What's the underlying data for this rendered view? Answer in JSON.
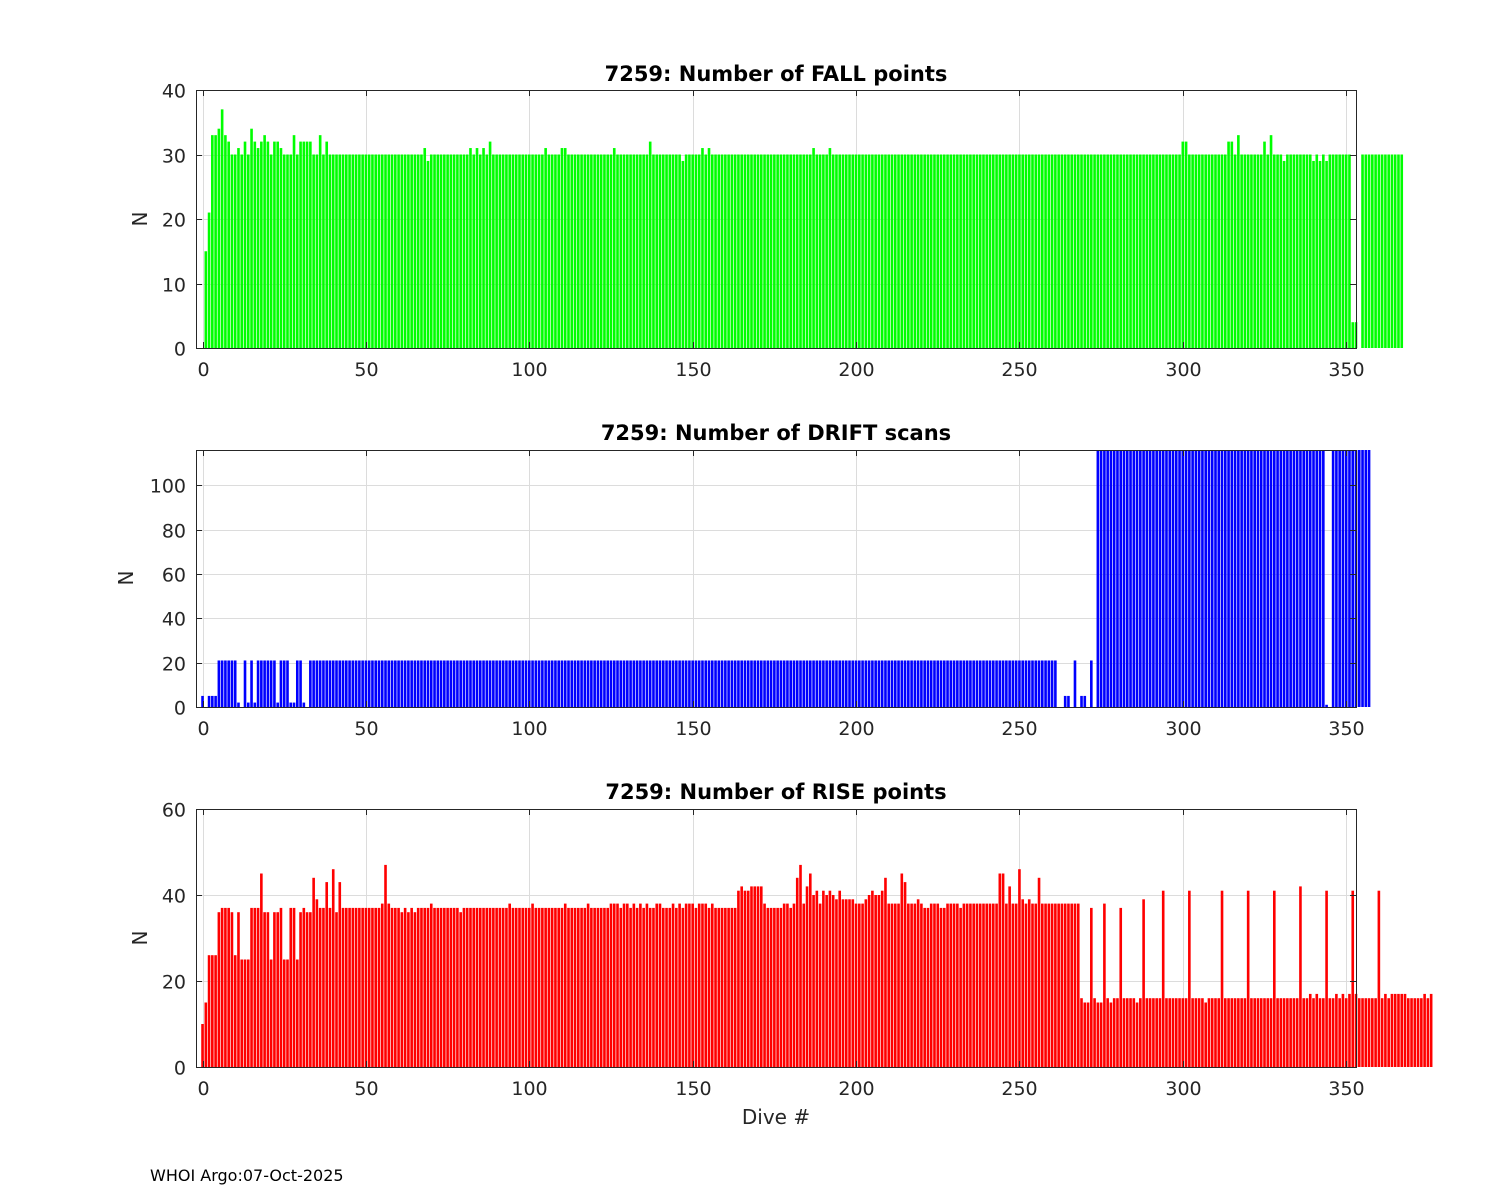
{
  "footer": "WHOI Argo:07-Oct-2025",
  "chart_data": [
    {
      "type": "bar",
      "title": "7259: Number of FALL points",
      "xlabel": "",
      "ylabel": "N",
      "xlim": [
        -2,
        353
      ],
      "ylim": [
        0,
        40
      ],
      "xticks": [
        0,
        50,
        100,
        150,
        200,
        250,
        300,
        350
      ],
      "yticks": [
        0,
        10,
        20,
        30,
        40
      ],
      "color": "#00ff00",
      "x_start": 1,
      "values": [
        15,
        21,
        33,
        33,
        34,
        37,
        33,
        32,
        30,
        30,
        31,
        30,
        32,
        30,
        34,
        32,
        31,
        32,
        33,
        32,
        30,
        32,
        32,
        31,
        30,
        30,
        30,
        33,
        30,
        32,
        32,
        32,
        32,
        30,
        30,
        33,
        30,
        32,
        30,
        30,
        30,
        30,
        30,
        30,
        30,
        30,
        30,
        30,
        30,
        30,
        30,
        30,
        30,
        30,
        30,
        30,
        30,
        30,
        30,
        30,
        30,
        30,
        30,
        30,
        30,
        30,
        30,
        31,
        29,
        30,
        30,
        30,
        30,
        30,
        30,
        30,
        30,
        30,
        30,
        30,
        30,
        31,
        30,
        31,
        30,
        31,
        30,
        32,
        30,
        30,
        30,
        30,
        30,
        30,
        30,
        30,
        30,
        30,
        30,
        30,
        30,
        30,
        30,
        30,
        31,
        30,
        30,
        30,
        30,
        31,
        31,
        30,
        30,
        30,
        30,
        30,
        30,
        30,
        30,
        30,
        30,
        30,
        30,
        30,
        30,
        31,
        30,
        30,
        30,
        30,
        30,
        30,
        30,
        30,
        30,
        30,
        32,
        30,
        30,
        30,
        30,
        30,
        30,
        30,
        30,
        30,
        29,
        30,
        30,
        30,
        30,
        30,
        31,
        30,
        31,
        30,
        30,
        30,
        30,
        30,
        30,
        30,
        30,
        30,
        30,
        30,
        30,
        30,
        30,
        30,
        30,
        30,
        30,
        30,
        30,
        30,
        30,
        30,
        30,
        30,
        30,
        30,
        30,
        30,
        30,
        30,
        31,
        30,
        30,
        30,
        30,
        31,
        30,
        30,
        30,
        30,
        30,
        30,
        30,
        30,
        30,
        30,
        30,
        30,
        30,
        30,
        30,
        30,
        30,
        30,
        30,
        30,
        30,
        30,
        30,
        30,
        30,
        30,
        30,
        30,
        30,
        30,
        30,
        30,
        30,
        30,
        30,
        30,
        30,
        30,
        30,
        30,
        30,
        30,
        30,
        30,
        30,
        30,
        30,
        30,
        30,
        30,
        30,
        30,
        30,
        30,
        30,
        30,
        30,
        30,
        30,
        30,
        30,
        30,
        30,
        30,
        30,
        30,
        30,
        30,
        30,
        30,
        30,
        30,
        30,
        30,
        30,
        30,
        30,
        30,
        30,
        30,
        30,
        30,
        30,
        30,
        30,
        30,
        30,
        30,
        30,
        30,
        30,
        30,
        30,
        30,
        30,
        30,
        30,
        30,
        30,
        30,
        30,
        30,
        30,
        30,
        30,
        30,
        30,
        32,
        32,
        30,
        30,
        30,
        30,
        30,
        30,
        30,
        30,
        30,
        30,
        30,
        30,
        32,
        32,
        30,
        33,
        30,
        30,
        30,
        30,
        30,
        30,
        30,
        32,
        30,
        33,
        30,
        30,
        30,
        29,
        30,
        30,
        30,
        30,
        30,
        30,
        30,
        30,
        29,
        30,
        29,
        30,
        29,
        30,
        30,
        30,
        30,
        30,
        30,
        30,
        4,
        4,
        0,
        30,
        30,
        30,
        30,
        30,
        30,
        30,
        30,
        30,
        30,
        30,
        30,
        30
      ]
    },
    {
      "type": "bar",
      "title": "7259: Number of DRIFT scans",
      "xlabel": "",
      "ylabel": "N",
      "xlim": [
        -2,
        353
      ],
      "ylim": [
        0,
        116
      ],
      "xticks": [
        0,
        50,
        100,
        150,
        200,
        250,
        300,
        350
      ],
      "yticks": [
        0,
        20,
        40,
        60,
        80,
        100
      ],
      "color": "#0000ff",
      "x_start": 0,
      "values": [
        5,
        0,
        5,
        5,
        5,
        21,
        21,
        21,
        21,
        21,
        21,
        2,
        0,
        21,
        2,
        21,
        2,
        21,
        21,
        21,
        21,
        21,
        21,
        2,
        21,
        21,
        21,
        2,
        2,
        21,
        21,
        2,
        0,
        21,
        21,
        21,
        21,
        21,
        21,
        21,
        21,
        21,
        21,
        21,
        21,
        21,
        21,
        21,
        21,
        21,
        21,
        21,
        21,
        21,
        21,
        21,
        21,
        21,
        21,
        21,
        21,
        21,
        21,
        21,
        21,
        21,
        21,
        21,
        21,
        21,
        21,
        21,
        21,
        21,
        21,
        21,
        21,
        21,
        21,
        21,
        21,
        21,
        21,
        21,
        21,
        21,
        21,
        21,
        21,
        21,
        21,
        21,
        21,
        21,
        21,
        21,
        21,
        21,
        21,
        21,
        21,
        21,
        21,
        21,
        21,
        21,
        21,
        21,
        21,
        21,
        21,
        21,
        21,
        21,
        21,
        21,
        21,
        21,
        21,
        21,
        21,
        21,
        21,
        21,
        21,
        21,
        21,
        21,
        21,
        21,
        21,
        21,
        21,
        21,
        21,
        21,
        21,
        21,
        21,
        21,
        21,
        21,
        21,
        21,
        21,
        21,
        21,
        21,
        21,
        21,
        21,
        21,
        21,
        21,
        21,
        21,
        21,
        21,
        21,
        21,
        21,
        21,
        21,
        21,
        21,
        21,
        21,
        21,
        21,
        21,
        21,
        21,
        21,
        21,
        21,
        21,
        21,
        21,
        21,
        21,
        21,
        21,
        21,
        21,
        21,
        21,
        21,
        21,
        21,
        21,
        21,
        21,
        21,
        21,
        21,
        21,
        21,
        21,
        21,
        21,
        21,
        21,
        21,
        21,
        21,
        21,
        21,
        21,
        21,
        21,
        21,
        21,
        21,
        21,
        21,
        21,
        21,
        21,
        21,
        21,
        21,
        21,
        21,
        21,
        21,
        21,
        21,
        21,
        21,
        21,
        21,
        21,
        21,
        21,
        21,
        21,
        21,
        21,
        21,
        21,
        21,
        21,
        21,
        21,
        21,
        21,
        21,
        21,
        21,
        21,
        21,
        21,
        21,
        21,
        21,
        21,
        21,
        21,
        21,
        21,
        21,
        21,
        0,
        0,
        5,
        5,
        0,
        21,
        0,
        5,
        5,
        0,
        21,
        0,
        117,
        117,
        117,
        117,
        117,
        117,
        117,
        117,
        117,
        117,
        117,
        117,
        117,
        117,
        117,
        117,
        117,
        117,
        117,
        117,
        117,
        117,
        117,
        117,
        117,
        117,
        117,
        117,
        117,
        117,
        117,
        117,
        117,
        117,
        117,
        117,
        117,
        117,
        117,
        117,
        117,
        117,
        117,
        117,
        117,
        117,
        117,
        117,
        117,
        117,
        117,
        117,
        117,
        117,
        117,
        117,
        117,
        117,
        117,
        117,
        117,
        117,
        117,
        117,
        117,
        117,
        117,
        117,
        117,
        117,
        1,
        0,
        117,
        117,
        117,
        117,
        117,
        117,
        117,
        117,
        117,
        117,
        117,
        117
      ]
    },
    {
      "type": "bar",
      "title": "7259: Number of RISE points",
      "xlabel": "Dive #",
      "ylabel": "N",
      "xlim": [
        -2,
        353
      ],
      "ylim": [
        0,
        60
      ],
      "xticks": [
        0,
        50,
        100,
        150,
        200,
        250,
        300,
        350
      ],
      "yticks": [
        0,
        20,
        40,
        60
      ],
      "color": "#ff0000",
      "x_start": 0,
      "values": [
        10,
        15,
        26,
        26,
        26,
        36,
        37,
        37,
        37,
        36,
        26,
        36,
        25,
        25,
        25,
        37,
        37,
        37,
        45,
        36,
        36,
        25,
        36,
        36,
        37,
        25,
        25,
        37,
        37,
        25,
        36,
        37,
        36,
        36,
        44,
        39,
        37,
        37,
        43,
        37,
        46,
        36,
        43,
        37,
        37,
        37,
        37,
        37,
        37,
        37,
        37,
        37,
        37,
        37,
        37,
        38,
        47,
        38,
        37,
        37,
        37,
        36,
        37,
        36,
        37,
        36,
        37,
        37,
        37,
        37,
        38,
        37,
        37,
        37,
        37,
        37,
        37,
        37,
        37,
        36,
        37,
        37,
        37,
        37,
        37,
        37,
        37,
        37,
        37,
        37,
        37,
        37,
        37,
        37,
        38,
        37,
        37,
        37,
        37,
        37,
        37,
        38,
        37,
        37,
        37,
        37,
        37,
        37,
        37,
        37,
        37,
        38,
        37,
        37,
        37,
        37,
        37,
        37,
        38,
        37,
        37,
        37,
        37,
        37,
        37,
        38,
        38,
        38,
        37,
        38,
        38,
        37,
        38,
        37,
        38,
        37,
        38,
        37,
        37,
        38,
        38,
        37,
        37,
        37,
        38,
        37,
        38,
        37,
        38,
        38,
        38,
        37,
        38,
        38,
        38,
        37,
        38,
        37,
        37,
        37,
        37,
        37,
        37,
        37,
        41,
        42,
        41,
        41,
        42,
        42,
        42,
        42,
        38,
        37,
        37,
        37,
        37,
        37,
        38,
        38,
        37,
        38,
        44,
        47,
        38,
        42,
        45,
        40,
        41,
        38,
        41,
        40,
        41,
        40,
        39,
        41,
        39,
        39,
        39,
        39,
        38,
        38,
        38,
        39,
        40,
        41,
        40,
        40,
        41,
        44,
        38,
        38,
        38,
        38,
        45,
        43,
        38,
        38,
        38,
        39,
        38,
        37,
        37,
        38,
        38,
        38,
        37,
        37,
        38,
        38,
        38,
        38,
        37,
        38,
        38,
        38,
        38,
        38,
        38,
        38,
        38,
        38,
        38,
        38,
        45,
        45,
        38,
        42,
        38,
        38,
        46,
        39,
        38,
        39,
        38,
        38,
        44,
        38,
        38,
        38,
        38,
        38,
        38,
        38,
        38,
        38,
        38,
        38,
        38,
        16,
        15,
        15,
        37,
        16,
        15,
        15,
        38,
        16,
        15,
        16,
        16,
        37,
        16,
        16,
        16,
        16,
        15,
        16,
        39,
        16,
        16,
        16,
        16,
        16,
        41,
        16,
        16,
        16,
        16,
        16,
        16,
        16,
        41,
        16,
        16,
        16,
        16,
        15,
        16,
        16,
        16,
        16,
        41,
        16,
        16,
        16,
        16,
        16,
        16,
        16,
        41,
        16,
        16,
        16,
        16,
        16,
        16,
        16,
        41,
        16,
        16,
        16,
        16,
        16,
        16,
        16,
        42,
        16,
        16,
        17,
        16,
        17,
        16,
        16,
        41,
        16,
        16,
        17,
        16,
        17,
        16,
        17,
        41,
        17,
        16,
        16,
        16,
        16,
        16,
        16,
        41,
        16,
        17,
        16,
        17,
        17,
        17,
        17,
        17,
        16,
        16,
        16,
        16,
        16,
        17,
        16,
        17
      ]
    }
  ]
}
